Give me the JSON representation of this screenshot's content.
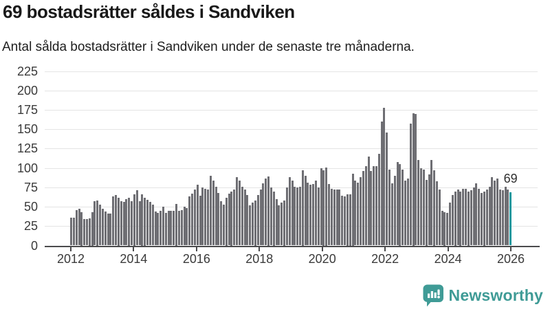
{
  "header": {
    "title": "69 bostadsrätter såldes i Sandviken",
    "subtitle": "Antal sålda bostadsrätter i Sandviken under de senaste tre månaderna."
  },
  "chart_data": {
    "type": "bar",
    "title": "69 bostadsrätter såldes i Sandviken",
    "subtitle": "Antal sålda bostadsrätter i Sandviken under de senaste tre månaderna.",
    "x_start": "2012-01",
    "x_end": "2025-12",
    "x_interval": "monthly",
    "x_tick_labels": [
      "2012",
      "2014",
      "2016",
      "2018",
      "2020",
      "2022",
      "2024",
      "2026"
    ],
    "y_ticks": [
      0,
      25,
      50,
      75,
      100,
      125,
      150,
      175,
      200,
      225
    ],
    "ylim": [
      0,
      225
    ],
    "grid": true,
    "legend": "none",
    "values": [
      36,
      36,
      46,
      47,
      43,
      34,
      34,
      35,
      43,
      57,
      58,
      53,
      47,
      44,
      41,
      41,
      63,
      65,
      62,
      57,
      56,
      60,
      62,
      57,
      66,
      71,
      57,
      66,
      62,
      59,
      56,
      53,
      44,
      42,
      45,
      50,
      42,
      45,
      45,
      45,
      54,
      45,
      46,
      50,
      48,
      63,
      67,
      72,
      78,
      64,
      75,
      73,
      72,
      90,
      84,
      76,
      68,
      57,
      53,
      62,
      67,
      70,
      72,
      88,
      84,
      76,
      72,
      65,
      52,
      55,
      58,
      65,
      72,
      80,
      86,
      89,
      75,
      70,
      60,
      52,
      55,
      58,
      75,
      88,
      84,
      76,
      75,
      76,
      97,
      90,
      81,
      78,
      79,
      84,
      75,
      100,
      97,
      101,
      79,
      73,
      72,
      72,
      72,
      64,
      63,
      66,
      66,
      93,
      84,
      81,
      88,
      96,
      102,
      115,
      96,
      102,
      102,
      118,
      160,
      178,
      146,
      98,
      80,
      90,
      108,
      105,
      98,
      84,
      86,
      157,
      171,
      170,
      110,
      100,
      98,
      85,
      92,
      110,
      97,
      83,
      72,
      45,
      43,
      42,
      55,
      65,
      70,
      72,
      70,
      73,
      73,
      70,
      71,
      75,
      80,
      73,
      68,
      70,
      72,
      76,
      88,
      84,
      86,
      72,
      71,
      76,
      72,
      69
    ],
    "highlight_last_value": 69,
    "annotation_label": "69",
    "bar_color": "#6e6e73",
    "highlight_color": "#17999f"
  },
  "footer": {
    "brand_label": "Newsworthy",
    "brand_color": "#3f9b96"
  },
  "colors": {
    "grid": "#e4e4e4",
    "axis": "#4a4a4c",
    "tick_text": "#3a3a3a"
  }
}
